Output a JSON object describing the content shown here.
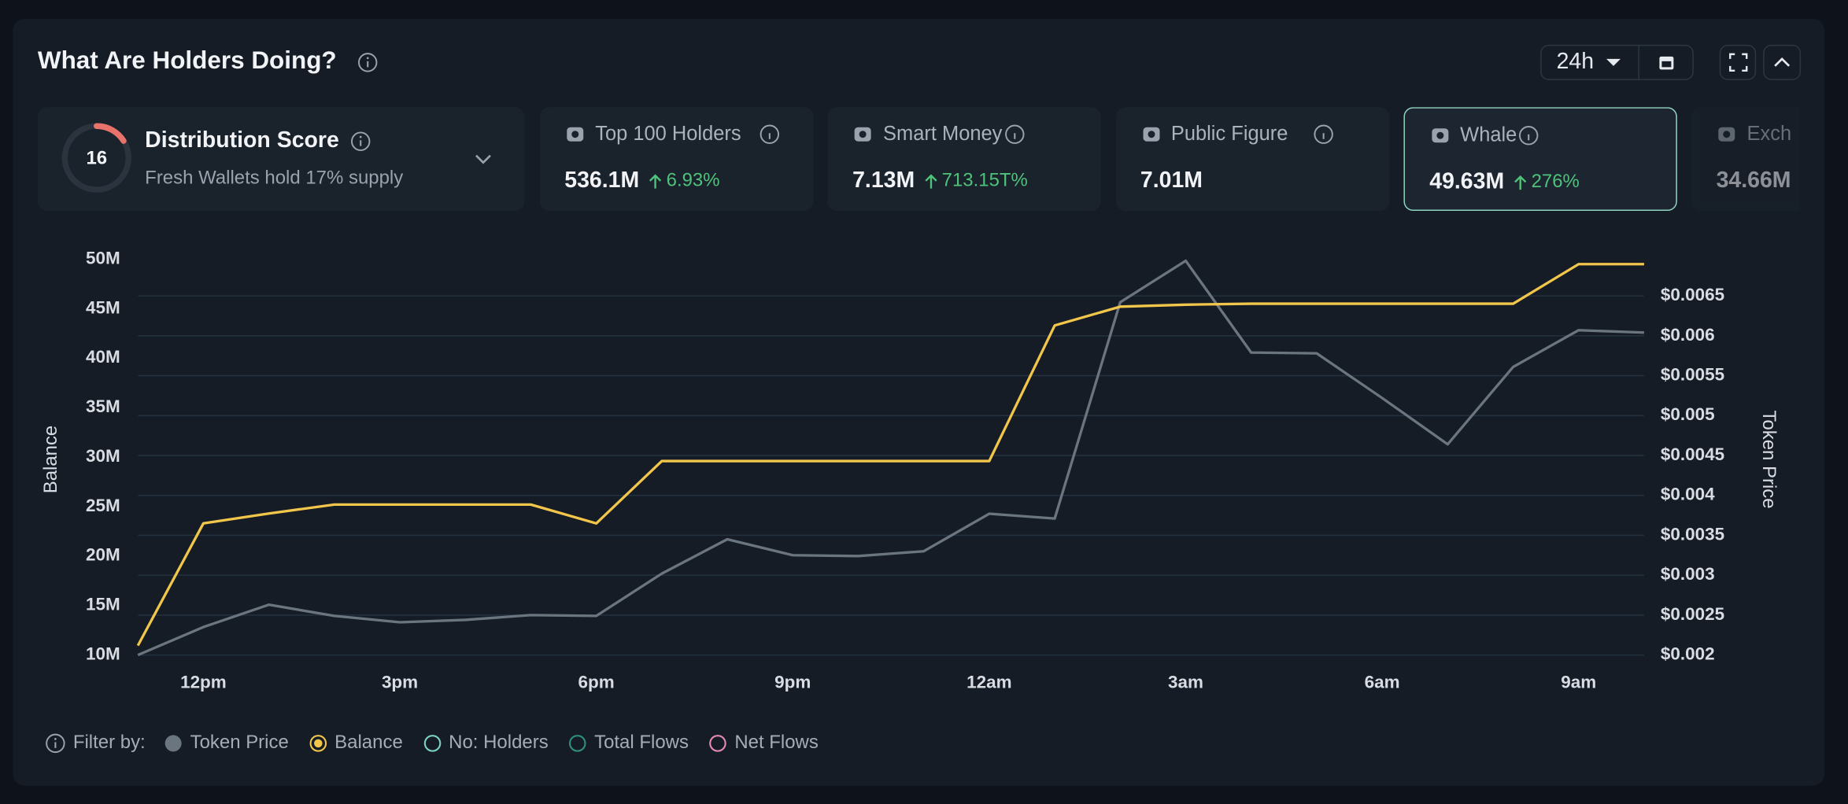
{
  "header": {
    "title": "What Are Holders Doing?",
    "timeframe": "24h"
  },
  "score": {
    "value": 16,
    "title": "Distribution Score",
    "subtitle": "Fresh Wallets hold 17% supply"
  },
  "cards": [
    {
      "label": "Top 100 Holders",
      "value": "536.1M",
      "change": "6.93%"
    },
    {
      "label": "Smart Money",
      "value": "7.13M",
      "change": "713.15T%"
    },
    {
      "label": "Public Figure",
      "value": "7.01M"
    },
    {
      "label": "Whale",
      "value": "49.63M",
      "change": "276%",
      "selected": true
    },
    {
      "label": "Exch",
      "value": "34.66M"
    }
  ],
  "chart_data": {
    "type": "line",
    "y_label": "Balance",
    "y2_label": "Token Price",
    "categories": [
      null,
      "12pm",
      null,
      null,
      "3pm",
      null,
      null,
      "6pm",
      null,
      null,
      "9pm",
      null,
      null,
      "12am",
      null,
      null,
      "3am",
      null,
      null,
      "6am",
      null,
      null,
      "9am",
      null
    ],
    "series": [
      {
        "name": "Token Price",
        "color": "#6b7580",
        "axis": "y2",
        "values": [
          0.002,
          0.00235,
          0.00263,
          0.00249,
          0.00241,
          0.00244,
          0.0025,
          0.00249,
          0.00302,
          0.00345,
          0.00325,
          0.00324,
          0.0033,
          0.00377,
          0.00371,
          0.00642,
          0.00694,
          0.00579,
          0.00578,
          0.00522,
          0.00464,
          0.00561,
          0.00607,
          0.00604
        ]
      },
      {
        "name": "Balance",
        "color": "#f2c54b",
        "values": [
          10950000,
          23300000,
          24300000,
          25200000,
          25200000,
          25200000,
          25200000,
          23300000,
          29600000,
          29600000,
          29600000,
          29600000,
          29600000,
          29600000,
          43300000,
          45200000,
          45400000,
          45500000,
          45500000,
          45500000,
          45500000,
          45500000,
          49500000,
          49500000
        ]
      }
    ],
    "ylim": [
      10000000,
      50000000
    ],
    "yticks": [
      {
        "value": 10000000,
        "label": "10M"
      },
      {
        "value": 15000000,
        "label": "15M"
      },
      {
        "value": 20000000,
        "label": "20M"
      },
      {
        "value": 25000000,
        "label": "25M"
      },
      {
        "value": 30000000,
        "label": "30M"
      },
      {
        "value": 35000000,
        "label": "35M"
      },
      {
        "value": 40000000,
        "label": "40M"
      },
      {
        "value": 45000000,
        "label": "45M"
      },
      {
        "value": 50000000,
        "label": "50M"
      }
    ],
    "y2lim": [
      0.002,
      0.00696
    ],
    "y2ticks": [
      {
        "value": 0.002,
        "label": "$0.002"
      },
      {
        "value": 0.0025,
        "label": "$0.0025"
      },
      {
        "value": 0.003,
        "label": "$0.003"
      },
      {
        "value": 0.0035,
        "label": "$0.0035"
      },
      {
        "value": 0.004,
        "label": "$0.004"
      },
      {
        "value": 0.0045,
        "label": "$0.0045"
      },
      {
        "value": 0.005,
        "label": "$0.005"
      },
      {
        "value": 0.0055,
        "label": "$0.0055"
      },
      {
        "value": 0.006,
        "label": "$0.006"
      },
      {
        "value": 0.0065,
        "label": "$0.0065"
      }
    ],
    "grid": true
  },
  "filters": {
    "label": "Filter by:",
    "items": [
      {
        "name": "No: Holders",
        "color": "#7dd3c0"
      },
      {
        "name": "Total Flows",
        "color": "#2f8f80"
      },
      {
        "name": "Net Flows",
        "color": "#e58bb0"
      }
    ]
  }
}
